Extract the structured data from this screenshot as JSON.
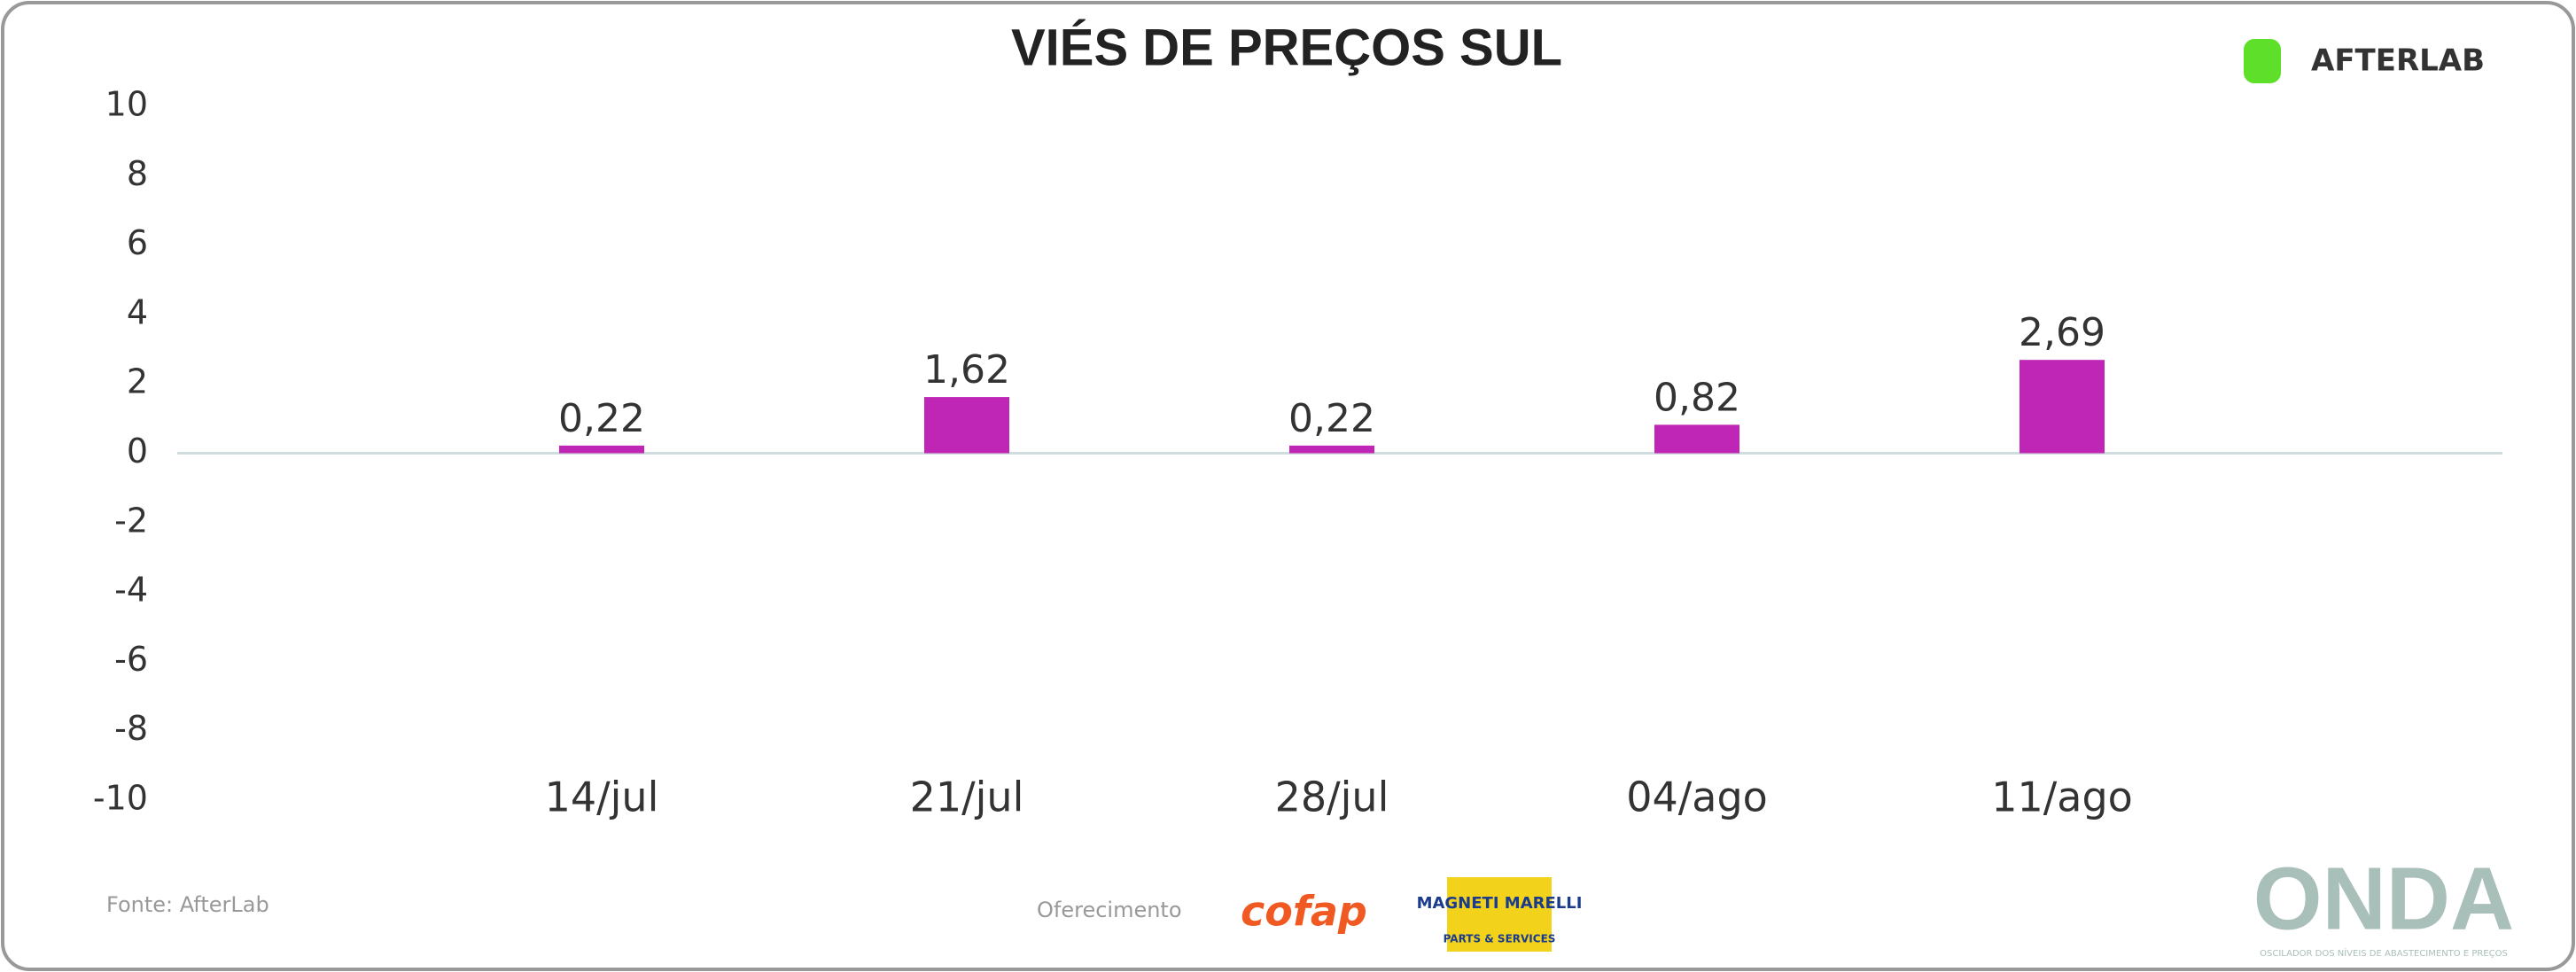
{
  "chart_data": {
    "type": "bar",
    "title": "VIÉS DE PREÇOS SUL",
    "categories": [
      "14/jul",
      "21/jul",
      "28/jul",
      "04/ago",
      "11/ago"
    ],
    "values": [
      0.22,
      1.62,
      0.22,
      0.82,
      2.69
    ],
    "value_labels": [
      "0,22",
      "1,62",
      "0,22",
      "0,82",
      "2,69"
    ],
    "color": "#c026b5",
    "ylim": [
      -10,
      10
    ],
    "yticks": [
      -10,
      -8,
      -6,
      -4,
      -2,
      0,
      2,
      4,
      6,
      8,
      10
    ],
    "grid": false
  },
  "footer": {
    "source": "Fonte: AfterLab",
    "sponsor_label": "Oferecimento",
    "logos": [
      "AFTERLAB",
      "cofap",
      "MAGNETI MARELLI",
      "PARTS & SERVICES",
      "ONDA",
      "OSCILADOR DOS NÍVEIS DE ABASTECIMENTO E PREÇOS"
    ]
  }
}
